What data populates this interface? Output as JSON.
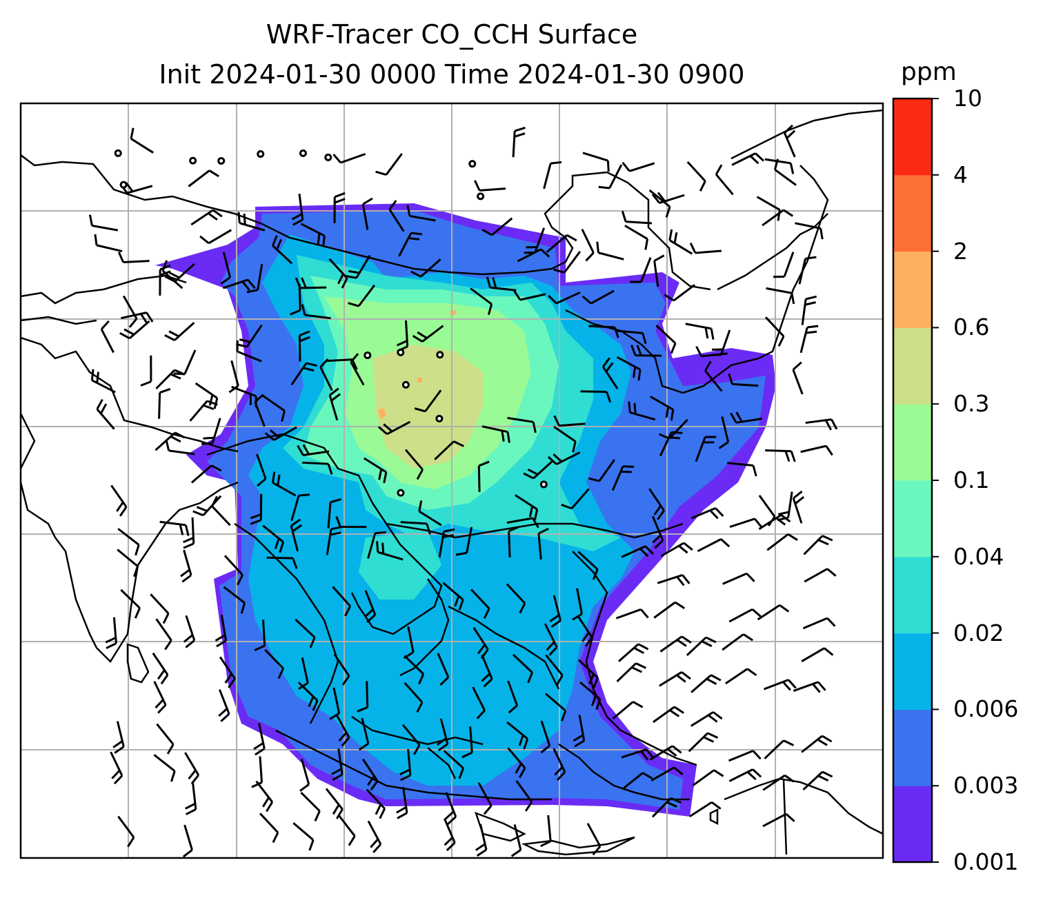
{
  "title": {
    "line1": "WRF-Tracer CO_CCH Surface",
    "line2": "Init 2024-01-30 0000 Time 2024-01-30 0900"
  },
  "colorbar": {
    "unit": "ppm",
    "levels": [
      "0.001",
      "0.003",
      "0.006",
      "0.02",
      "0.04",
      "0.1",
      "0.3",
      "0.6",
      "2",
      "4",
      "10"
    ],
    "colors": [
      "#6a2cf5",
      "#3a73f0",
      "#06b3e8",
      "#30ddd3",
      "#6af7bd",
      "#9afa96",
      "#cde089",
      "#fdb15f",
      "#fd7035",
      "#fb2b16"
    ]
  },
  "map": {
    "gridlines": true,
    "coastline_color": "#000000",
    "grid_color": "#b0b0b0",
    "overlay": "wind barbs"
  }
}
